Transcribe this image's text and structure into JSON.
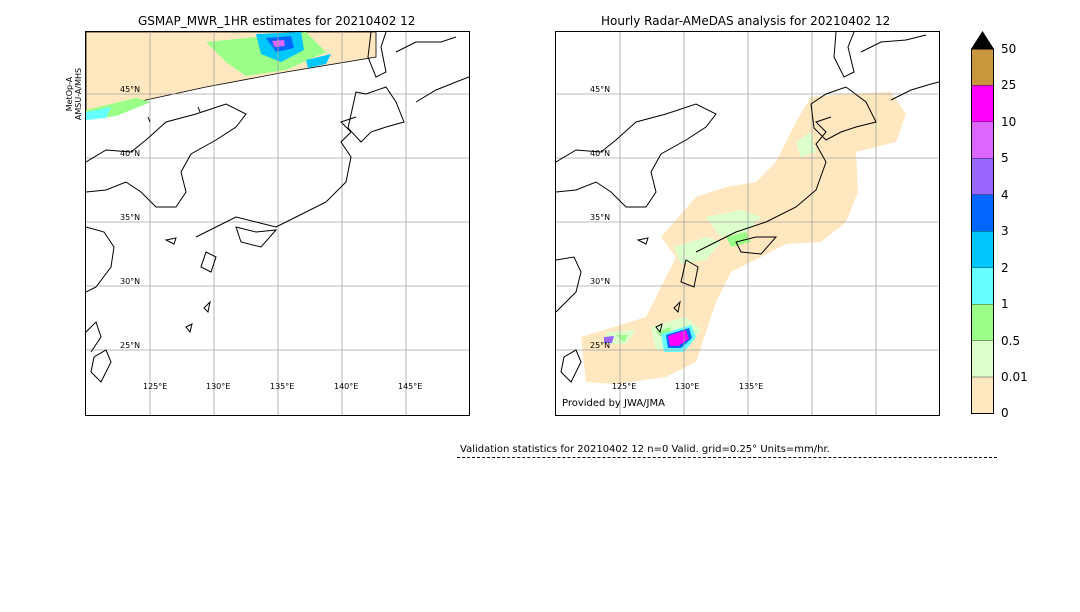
{
  "left_panel": {
    "title": "GSMAP_MWR_1HR estimates for 20210402 12",
    "satellite_label_1": "MetOp-A",
    "satellite_label_2": "AMSU-A/MHS",
    "lat_labels": [
      "45°N",
      "40°N",
      "35°N",
      "30°N",
      "25°N"
    ],
    "lon_labels": [
      "125°E",
      "130°E",
      "135°E",
      "140°E",
      "145°E"
    ]
  },
  "right_panel": {
    "title": "Hourly Radar-AMeDAS analysis for 20210402 12",
    "credit": "Provided by JWA/JMA",
    "lat_labels": [
      "45°N",
      "40°N",
      "35°N",
      "30°N",
      "25°N"
    ],
    "lon_labels": [
      "125°E",
      "130°E",
      "135°E"
    ]
  },
  "colorbar": {
    "levels": [
      "50",
      "25",
      "10",
      "5",
      "4",
      "3",
      "2",
      "1",
      "0.5",
      "0.01",
      "0"
    ],
    "colors": [
      "#c8963c",
      "#ff00ff",
      "#dd66ff",
      "#9966ff",
      "#0066ff",
      "#00c8ff",
      "#66ffff",
      "#99ff88",
      "#ddffcc",
      "#ffe8bf"
    ],
    "over_color": "#000000"
  },
  "validation": {
    "text": "Validation statistics for 20210402 12  n=0 Valid. grid=0.25° Units=mm/hr."
  },
  "map_colors": {
    "coast": "#000000",
    "grid": "#a0a0a0",
    "no_coverage": "#ffe8bf"
  }
}
